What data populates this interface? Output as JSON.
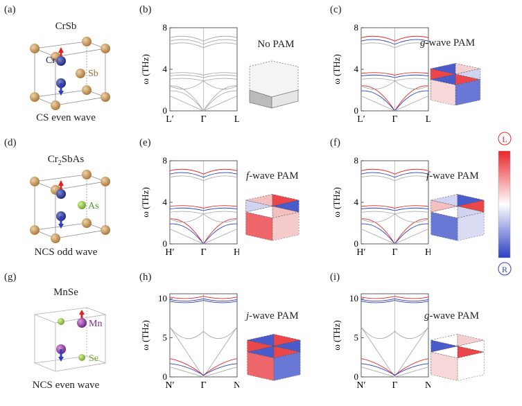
{
  "panel_labels": [
    "(a)",
    "(b)",
    "(c)",
    "(d)",
    "(e)",
    "(f)",
    "(g)",
    "(h)",
    "(i)"
  ],
  "rows": [
    {
      "material": "CrSb",
      "caption": "CS even wave",
      "atoms": {
        "a": "Cr",
        "b": "Sb"
      },
      "plots": [
        {
          "ylabel": "ω (THz)",
          "ticks": [
            "0",
            "4",
            "8"
          ],
          "xticks": [
            "L′",
            "Γ",
            "L"
          ],
          "pam": "No PAM"
        },
        {
          "ylabel": "ω (THz)",
          "ticks": [
            "0",
            "4",
            "8"
          ],
          "xticks": [
            "L′",
            "Γ",
            "L"
          ],
          "pam_italic": "g",
          "pam": "-wave PAM"
        }
      ]
    },
    {
      "material_main": "Cr",
      "material_sub": "2",
      "material_rest": "SbAs",
      "caption": "NCS odd wave",
      "atoms": {
        "a": "As"
      },
      "plots": [
        {
          "ylabel": "ω (THz)",
          "ticks": [
            "0",
            "4",
            "8"
          ],
          "xticks": [
            "H′",
            "Γ",
            "H"
          ],
          "pam_italic": "f",
          "pam": "-wave PAM"
        },
        {
          "ylabel": "ω (THz)",
          "ticks": [
            "0",
            "4",
            "8"
          ],
          "xticks": [
            "H′",
            "Γ",
            "H"
          ],
          "pam_italic": "f",
          "pam": "-wave PAM"
        }
      ]
    },
    {
      "material": "MnSe",
      "caption": "NCS even wave",
      "atoms": {
        "a": "Mn",
        "b": "Se"
      },
      "plots": [
        {
          "ylabel": "ω (THz)",
          "ticks": [
            "0",
            "5",
            "10"
          ],
          "xticks": [
            "N′",
            "Γ",
            "N"
          ],
          "pam_italic": "j",
          "pam": "-wave PAM"
        },
        {
          "ylabel": "ω (THz)",
          "ticks": [
            "0",
            "5",
            "10"
          ],
          "xticks": [
            "N′",
            "Γ",
            "N"
          ],
          "pam_italic": "g",
          "pam": "-wave PAM"
        }
      ]
    }
  ],
  "colorbar": {
    "top": "L",
    "bottom": "R",
    "top_color": "#e8262a",
    "bottom_color": "#2b3fc4"
  }
}
